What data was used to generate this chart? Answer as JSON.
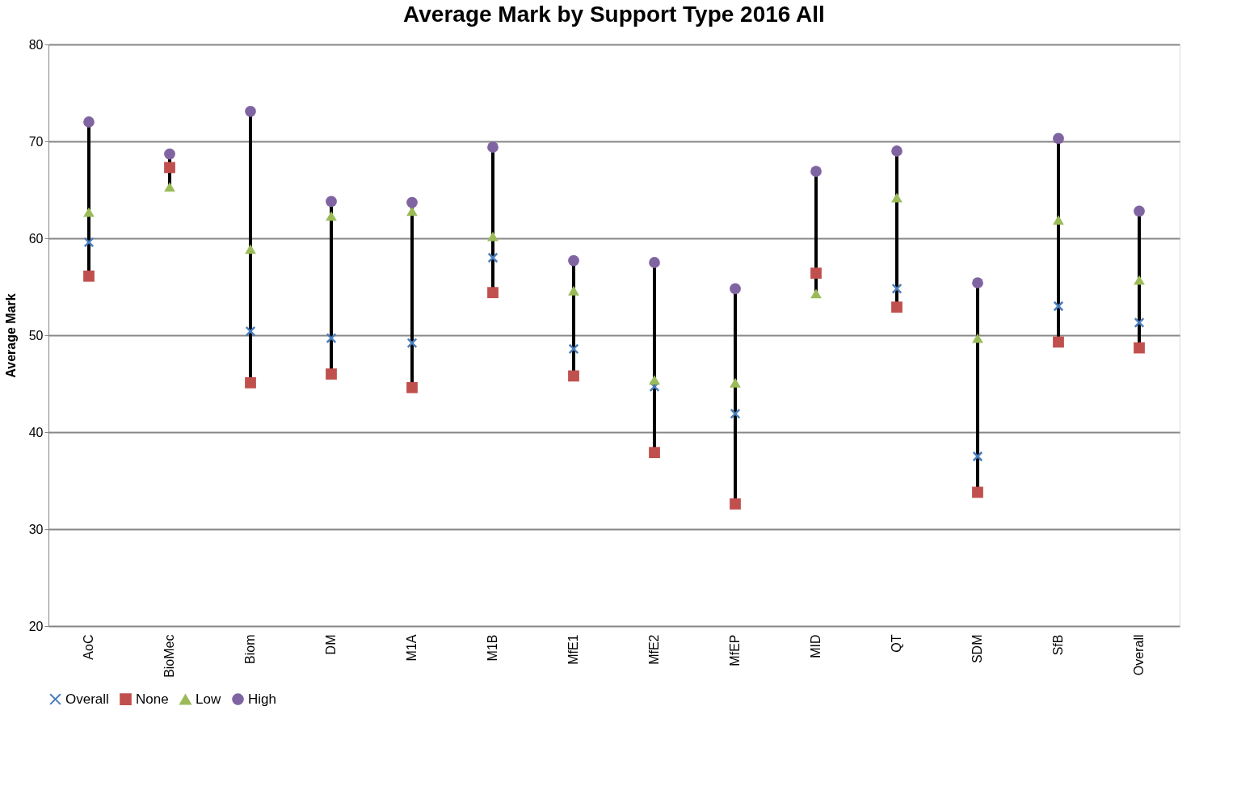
{
  "chart_data": {
    "type": "scatter",
    "title": "Average Mark by Support Type  2016 All",
    "ylabel": "Average Mark",
    "categories": [
      "AoC",
      "BioMec",
      "Biom",
      "DM",
      "M1A",
      "M1B",
      "MfE1",
      "MfE2",
      "MfEP",
      "MID",
      "QT",
      "SDM",
      "SfB",
      "Overall"
    ],
    "series": [
      {
        "name": "Overall",
        "color": "#4a7ebb",
        "marker": "cross",
        "values": [
          59.6,
          null,
          50.4,
          49.7,
          49.2,
          58.0,
          48.6,
          44.7,
          41.9,
          null,
          54.8,
          37.5,
          53.0,
          51.3
        ]
      },
      {
        "name": "None",
        "color": "#c0504d",
        "marker": "square",
        "values": [
          56.1,
          67.3,
          45.1,
          46.0,
          44.6,
          54.4,
          45.8,
          37.9,
          32.6,
          56.4,
          52.9,
          33.8,
          49.3,
          48.7
        ]
      },
      {
        "name": "Low",
        "color": "#9bbb59",
        "marker": "triangle",
        "values": [
          62.7,
          65.3,
          58.9,
          62.3,
          62.8,
          60.2,
          54.6,
          45.4,
          45.1,
          54.3,
          64.2,
          49.7,
          61.9,
          55.7
        ]
      },
      {
        "name": "High",
        "color": "#8064a2",
        "marker": "circle",
        "values": [
          72.0,
          68.7,
          73.1,
          63.8,
          63.7,
          69.4,
          57.7,
          57.5,
          54.8,
          66.9,
          69.0,
          55.4,
          70.3,
          62.8
        ]
      }
    ],
    "ylim": [
      20,
      80
    ],
    "yticks": [
      20,
      30,
      40,
      50,
      60,
      70,
      80
    ],
    "grid": "y",
    "legend": "bottom"
  }
}
